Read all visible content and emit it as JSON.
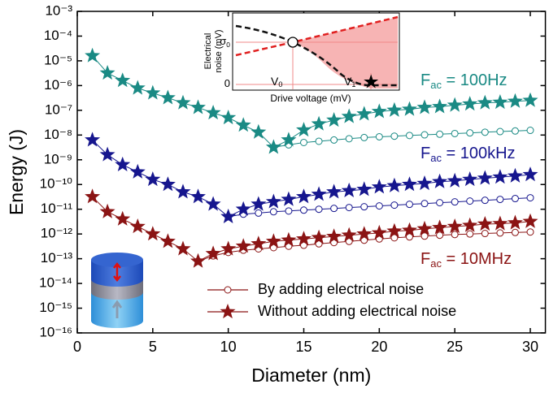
{
  "chart_data": {
    "type": "scatter-line",
    "xlabel": "Diameter (nm)",
    "ylabel": "Energy (J)",
    "xlim": [
      0,
      31
    ],
    "xticks": [
      0,
      5,
      10,
      15,
      20,
      25,
      30
    ],
    "ylim": [
      1e-16,
      0.001
    ],
    "yscale": "log",
    "yticks": [
      {
        "value": 0.001,
        "label": "10⁻³"
      },
      {
        "value": 0.0001,
        "label": "10⁻⁴"
      },
      {
        "value": 1e-05,
        "label": "10⁻⁵"
      },
      {
        "value": 1e-06,
        "label": "10⁻⁶"
      },
      {
        "value": 1e-07,
        "label": "10⁻⁷"
      },
      {
        "value": 1e-08,
        "label": "10⁻⁸"
      },
      {
        "value": 1e-09,
        "label": "10⁻⁹"
      },
      {
        "value": 1e-10,
        "label": "10⁻¹⁰"
      },
      {
        "value": 1e-11,
        "label": "10⁻¹¹"
      },
      {
        "value": 1e-12,
        "label": "10⁻¹²"
      },
      {
        "value": 1e-13,
        "label": "10⁻¹³"
      },
      {
        "value": 1e-14,
        "label": "10⁻¹⁴"
      },
      {
        "value": 1e-15,
        "label": "10⁻¹⁵"
      },
      {
        "value": 1e-16,
        "label": "10⁻¹⁶"
      }
    ],
    "series": [
      {
        "marker": "star",
        "color": "#1a8a84",
        "x": [
          1,
          2,
          3,
          4,
          5,
          6,
          7,
          8,
          9,
          10,
          11,
          12,
          13,
          14,
          15,
          16,
          17,
          18,
          19,
          20,
          21,
          22,
          23,
          24,
          25,
          26,
          27,
          28,
          29,
          30
        ],
        "values": [
          1.6e-05,
          3.2e-06,
          1.6e-06,
          7.9e-07,
          5e-07,
          3.2e-07,
          2e-07,
          1.3e-07,
          7.9e-08,
          5e-08,
          2.5e-08,
          1.3e-08,
          3.2e-09,
          6.3e-09,
          1.6e-08,
          2.8e-08,
          4e-08,
          5.6e-08,
          7.1e-08,
          8.9e-08,
          1e-07,
          1.1e-07,
          1.3e-07,
          1.4e-07,
          1.6e-07,
          1.8e-07,
          2e-07,
          2.1e-07,
          2.3e-07,
          2.5e-07
        ]
      },
      {
        "marker": "circle",
        "color": "#1a8a84",
        "x": [
          13,
          14,
          15,
          16,
          17,
          18,
          19,
          20,
          21,
          22,
          23,
          24,
          25,
          26,
          27,
          28,
          29,
          30
        ],
        "values": [
          3.2e-09,
          4e-09,
          5e-09,
          5.6e-09,
          6.3e-09,
          7.1e-09,
          7.9e-09,
          8.5e-09,
          9e-09,
          9.6e-09,
          1.02e-08,
          1.08e-08,
          1.15e-08,
          1.22e-08,
          1.3e-08,
          1.38e-08,
          1.46e-08,
          1.55e-08
        ]
      },
      {
        "marker": "star",
        "color": "#16168e",
        "x": [
          1,
          2,
          3,
          4,
          5,
          6,
          7,
          8,
          9,
          10,
          11,
          12,
          13,
          14,
          15,
          16,
          17,
          18,
          19,
          20,
          21,
          22,
          23,
          24,
          25,
          26,
          27,
          28,
          29,
          30
        ],
        "values": [
          6.3e-09,
          1.6e-09,
          6.3e-10,
          3.2e-10,
          1.6e-10,
          1e-10,
          5e-11,
          3.2e-11,
          1.6e-11,
          5e-12,
          1e-11,
          1.6e-11,
          2e-11,
          2.5e-11,
          3.2e-11,
          4e-11,
          5e-11,
          5.6e-11,
          6.3e-11,
          7.9e-11,
          8.9e-11,
          1e-10,
          1.1e-10,
          1.3e-10,
          1.4e-10,
          1.6e-10,
          1.8e-10,
          2e-10,
          2.2e-10,
          2.5e-10
        ]
      },
      {
        "marker": "circle",
        "color": "#16168e",
        "x": [
          10,
          11,
          12,
          13,
          14,
          15,
          16,
          17,
          18,
          19,
          20,
          21,
          22,
          23,
          24,
          25,
          26,
          27,
          28,
          29,
          30
        ],
        "values": [
          5e-12,
          6.3e-12,
          7e-12,
          7.9e-12,
          8.5e-12,
          9.2e-12,
          1e-11,
          1.08e-11,
          1.17e-11,
          1.26e-11,
          1.36e-11,
          1.47e-11,
          1.58e-11,
          1.7e-11,
          1.84e-11,
          1.98e-11,
          2.14e-11,
          2.3e-11,
          2.5e-11,
          2.7e-11,
          2.9e-11
        ]
      },
      {
        "marker": "star",
        "color": "#8b1414",
        "x": [
          1,
          2,
          3,
          4,
          5,
          6,
          7,
          8,
          9,
          10,
          11,
          12,
          13,
          14,
          15,
          16,
          17,
          18,
          19,
          20,
          21,
          22,
          23,
          24,
          25,
          26,
          27,
          28,
          29,
          30
        ],
        "values": [
          3.2e-11,
          7.9e-12,
          4e-12,
          2e-12,
          1e-12,
          5e-13,
          2.5e-13,
          7.9e-14,
          1.6e-13,
          2.5e-13,
          3.2e-13,
          4e-13,
          5e-13,
          5.6e-13,
          6.3e-13,
          7.1e-13,
          7.9e-13,
          8.9e-13,
          1e-12,
          1.1e-12,
          1.3e-12,
          1.4e-12,
          1.6e-12,
          1.8e-12,
          2e-12,
          2.2e-12,
          2.5e-12,
          2.6e-12,
          2.8e-12,
          3.2e-12
        ]
      },
      {
        "marker": "circle",
        "color": "#8b1414",
        "x": [
          8,
          9,
          10,
          11,
          12,
          13,
          14,
          15,
          16,
          17,
          18,
          19,
          20,
          21,
          22,
          23,
          24,
          25,
          26,
          27,
          28,
          29,
          30
        ],
        "values": [
          7.9e-14,
          1.3e-13,
          1.8e-13,
          2.2e-13,
          2.5e-13,
          2.8e-13,
          3.2e-13,
          3.5e-13,
          4e-13,
          4.5e-13,
          5e-13,
          5.6e-13,
          6.3e-13,
          7e-13,
          7.6e-13,
          8.2e-13,
          8.9e-13,
          9.5e-13,
          1e-12,
          1.05e-12,
          1.1e-12,
          1.15e-12,
          1.2e-12
        ]
      }
    ],
    "legend": [
      {
        "label": "By adding electrical noise",
        "marker": "circle",
        "color": "#8b1414"
      },
      {
        "label": "Without adding electrical noise",
        "marker": "star",
        "color": "#8b1414"
      }
    ],
    "annotations": [
      {
        "text": "F",
        "sub": "ac",
        "rest": " = 100Hz",
        "color": "#1a8a84"
      },
      {
        "text": "F",
        "sub": "ac",
        "rest": " = 100kHz",
        "color": "#16168e"
      },
      {
        "text": "F",
        "sub": "ac",
        "rest": " = 10MHz",
        "color": "#8b1414"
      }
    ],
    "inset": {
      "ylabel": [
        "Electrical",
        "noise (mV)"
      ],
      "xlabel": "Drive voltage (mV)",
      "ytick_labels": [
        {
          "text": "σ",
          "sub": "0"
        },
        {
          "text": "0"
        }
      ],
      "xtick_labels": [
        {
          "text": "V",
          "sub": "0"
        },
        {
          "text": "V",
          "sub": "1"
        }
      ]
    }
  }
}
